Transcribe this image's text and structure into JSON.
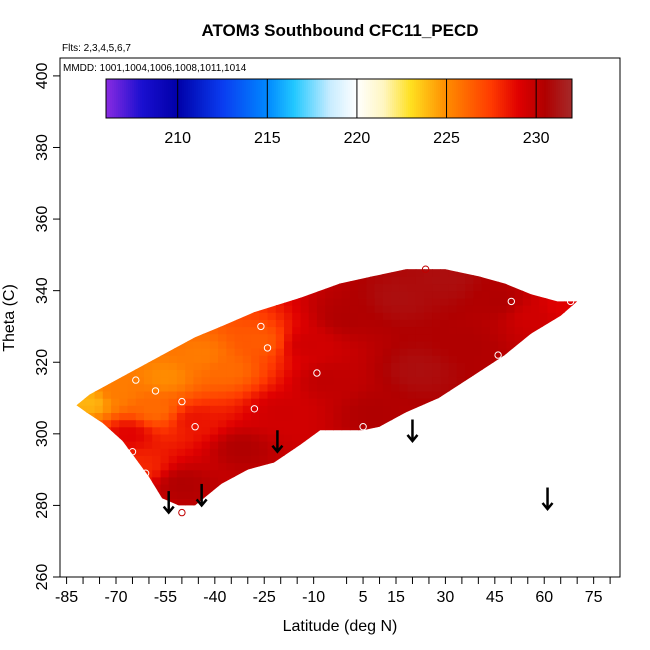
{
  "chart_data": {
    "type": "heatmap",
    "title": "ATOM3 Southbound CFC11_PECD",
    "flights_note": "Flts: 2,3,4,5,6,7",
    "dates_note": "MMDD: 1001,1004,1006,1008,1011,1014",
    "xlabel": "Latitude (deg N)",
    "ylabel": "Theta (C)",
    "xlim": [
      -87,
      83
    ],
    "ylim": [
      260,
      405
    ],
    "x_ticks": [
      -85,
      -70,
      -55,
      -40,
      -25,
      -10,
      5,
      15,
      30,
      45,
      60,
      75
    ],
    "x_minor_ticks": [
      -80,
      -75,
      -65,
      -60,
      -50,
      -45,
      -35,
      -30,
      -20,
      -15,
      0,
      10,
      20,
      25,
      35,
      40,
      50,
      55,
      65,
      70,
      80
    ],
    "y_ticks": [
      260,
      280,
      300,
      320,
      340,
      360,
      380,
      400
    ],
    "colorbar": {
      "min": 206,
      "max": 232,
      "ticks": [
        210,
        215,
        220,
        225,
        230
      ],
      "stops": [
        {
          "value": 206,
          "color": "#8a2be2"
        },
        {
          "value": 208,
          "color": "#1a0fd0"
        },
        {
          "value": 210,
          "color": "#0000a8"
        },
        {
          "value": 212.5,
          "color": "#0a3cf0"
        },
        {
          "value": 215,
          "color": "#0088ff"
        },
        {
          "value": 216.5,
          "color": "#22c8ff"
        },
        {
          "value": 218.5,
          "color": "#c8ecff"
        },
        {
          "value": 220,
          "color": "#ffffff"
        },
        {
          "value": 221.5,
          "color": "#fff6c0"
        },
        {
          "value": 223,
          "color": "#ffe020"
        },
        {
          "value": 225,
          "color": "#ff8c00"
        },
        {
          "value": 227.5,
          "color": "#ff3a00"
        },
        {
          "value": 229,
          "color": "#e00000"
        },
        {
          "value": 230.5,
          "color": "#b00000"
        },
        {
          "value": 232,
          "color": "#a52a2a"
        }
      ]
    },
    "field_boundary": [
      [
        -82,
        308
      ],
      [
        -78,
        311
      ],
      [
        -72,
        314
      ],
      [
        -64,
        318
      ],
      [
        -54,
        323
      ],
      [
        -46,
        327
      ],
      [
        -38,
        330
      ],
      [
        -28,
        334
      ],
      [
        -14,
        338
      ],
      [
        -2,
        342
      ],
      [
        8,
        344
      ],
      [
        18,
        346
      ],
      [
        30,
        346
      ],
      [
        40,
        344
      ],
      [
        48,
        342
      ],
      [
        56,
        339
      ],
      [
        64,
        337
      ],
      [
        70,
        337
      ],
      [
        65,
        333
      ],
      [
        56,
        328
      ],
      [
        48,
        322
      ],
      [
        38,
        316
      ],
      [
        28,
        310
      ],
      [
        18,
        306
      ],
      [
        10,
        302
      ],
      [
        5,
        301
      ],
      [
        -8,
        301
      ],
      [
        -14,
        297
      ],
      [
        -22,
        292
      ],
      [
        -30,
        290
      ],
      [
        -38,
        286
      ],
      [
        -46,
        280
      ],
      [
        -51,
        280
      ],
      [
        -56,
        282
      ],
      [
        -60,
        288
      ],
      [
        -64,
        293
      ],
      [
        -68,
        298
      ],
      [
        -74,
        303
      ],
      [
        -79,
        306
      ]
    ],
    "field_nodes": [
      {
        "x": -78,
        "y": 309,
        "v": 224.0
      },
      {
        "x": -70,
        "y": 312,
        "v": 225.5
      },
      {
        "x": -66,
        "y": 300,
        "v": 229.0
      },
      {
        "x": -62,
        "y": 291,
        "v": 228.0
      },
      {
        "x": -58,
        "y": 307,
        "v": 226.0
      },
      {
        "x": -55,
        "y": 316,
        "v": 225.0
      },
      {
        "x": -50,
        "y": 286,
        "v": 230.5
      },
      {
        "x": -46,
        "y": 304,
        "v": 228.5
      },
      {
        "x": -44,
        "y": 322,
        "v": 225.5
      },
      {
        "x": -36,
        "y": 318,
        "v": 226.0
      },
      {
        "x": -32,
        "y": 296,
        "v": 230.5
      },
      {
        "x": -26,
        "y": 326,
        "v": 226.5
      },
      {
        "x": -20,
        "y": 306,
        "v": 229.5
      },
      {
        "x": -12,
        "y": 325,
        "v": 229.5
      },
      {
        "x": -6,
        "y": 315,
        "v": 230.0
      },
      {
        "x": 0,
        "y": 333,
        "v": 230.5
      },
      {
        "x": 8,
        "y": 306,
        "v": 230.5
      },
      {
        "x": 16,
        "y": 338,
        "v": 231.0
      },
      {
        "x": 22,
        "y": 318,
        "v": 231.0
      },
      {
        "x": 30,
        "y": 343,
        "v": 231.0
      },
      {
        "x": 36,
        "y": 325,
        "v": 230.5
      },
      {
        "x": 46,
        "y": 337,
        "v": 230.5
      },
      {
        "x": 56,
        "y": 333,
        "v": 229.5
      },
      {
        "x": 66,
        "y": 336,
        "v": 229.0
      }
    ],
    "samples": [
      {
        "lat": -64,
        "theta": 315,
        "color": "#ffffff"
      },
      {
        "lat": -58,
        "theta": 312,
        "color": "#ffffff"
      },
      {
        "lat": -65,
        "theta": 295,
        "color": "#ffffff"
      },
      {
        "lat": -61,
        "theta": 289,
        "color": "#ffffff"
      },
      {
        "lat": -50,
        "theta": 309,
        "color": "#ffffff"
      },
      {
        "lat": -46,
        "theta": 302,
        "color": "#ffffff"
      },
      {
        "lat": -26,
        "theta": 330,
        "color": "#ffffff"
      },
      {
        "lat": -24,
        "theta": 324,
        "color": "#ffffff"
      },
      {
        "lat": -28,
        "theta": 307,
        "color": "#ffffff"
      },
      {
        "lat": -9,
        "theta": 317,
        "color": "#ffffff"
      },
      {
        "lat": 5,
        "theta": 302,
        "color": "#ffffff"
      },
      {
        "lat": 50,
        "theta": 337,
        "color": "#ffffff"
      },
      {
        "lat": 68,
        "theta": 337,
        "color": "#ffffff"
      },
      {
        "lat": 46,
        "theta": 322,
        "color": "#ffffff"
      },
      {
        "lat": 24,
        "theta": 346,
        "color": "#c00000"
      },
      {
        "lat": -50,
        "theta": 278,
        "color": "#c00000"
      }
    ],
    "arrows": [
      {
        "lat": -54,
        "theta_top": 284,
        "theta_tip": 278
      },
      {
        "lat": -44,
        "theta_top": 286,
        "theta_tip": 280
      },
      {
        "lat": -21,
        "theta_top": 301,
        "theta_tip": 295
      },
      {
        "lat": 20,
        "theta_top": 304,
        "theta_tip": 298
      },
      {
        "lat": 61,
        "theta_top": 285,
        "theta_tip": 279
      }
    ]
  }
}
